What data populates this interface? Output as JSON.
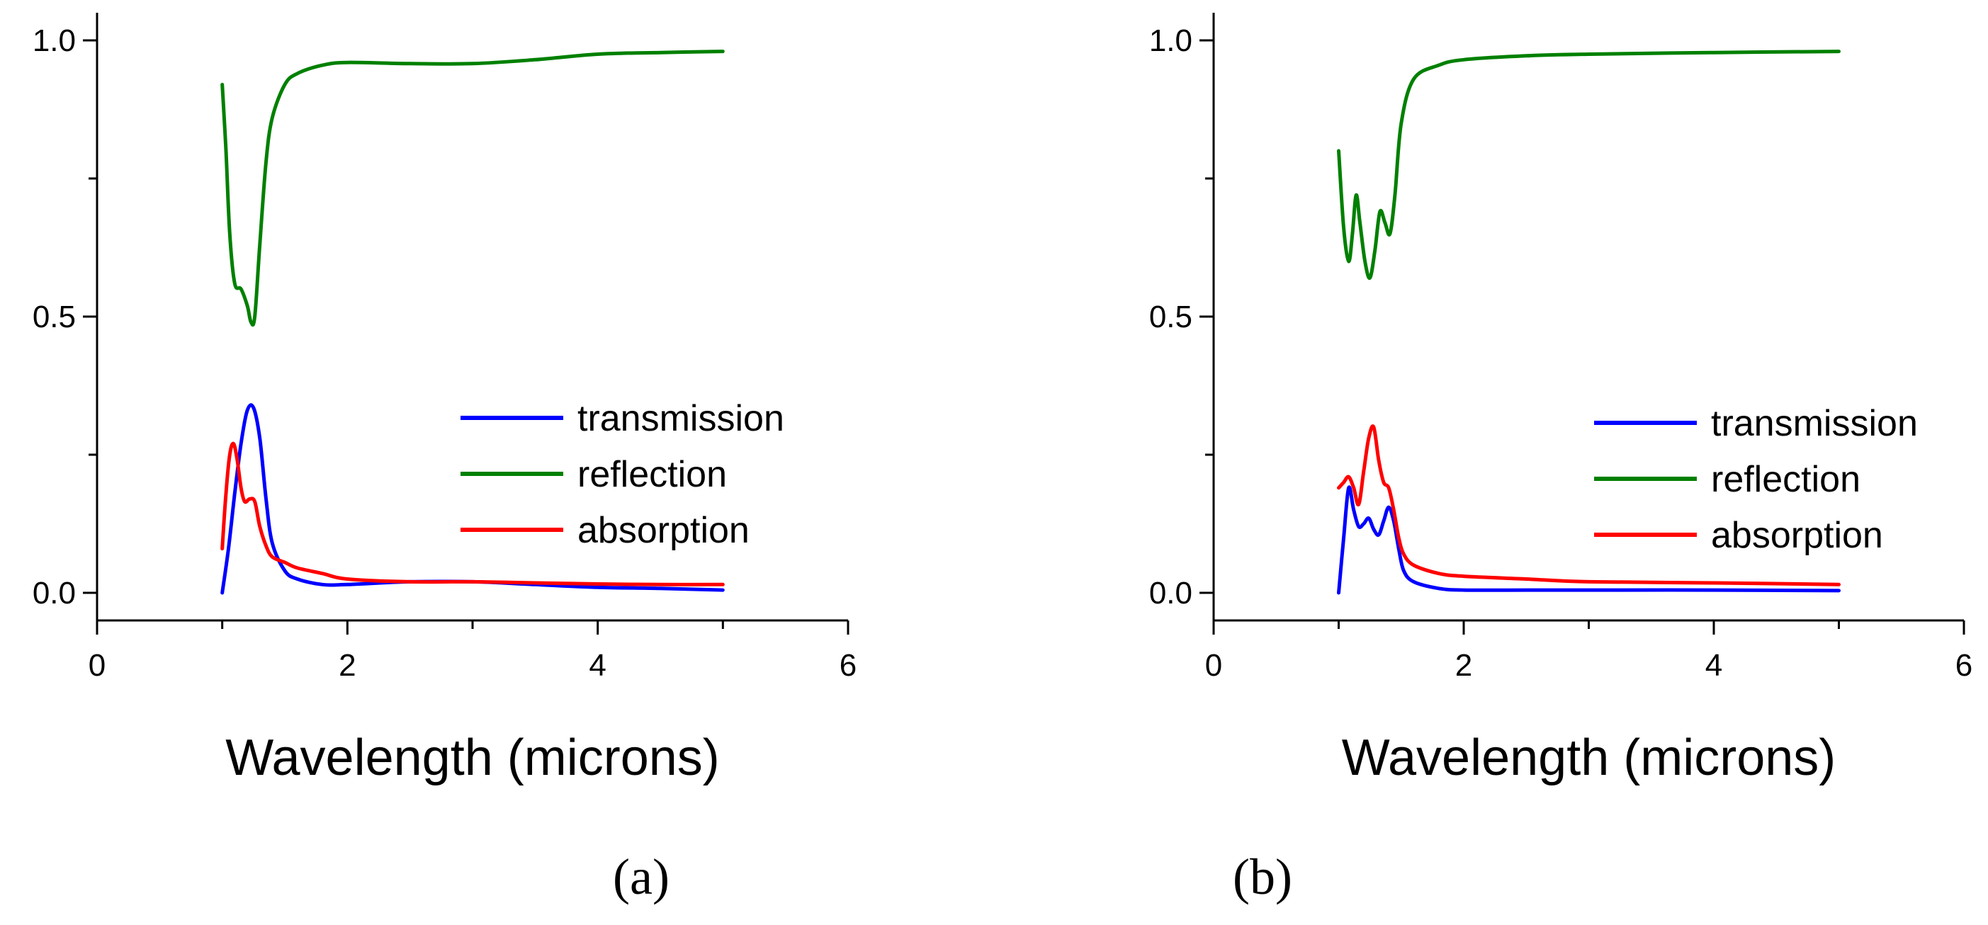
{
  "chart_data": [
    {
      "type": "line",
      "panel_label": "(a)",
      "title": "",
      "xlabel": "Wavelength (microns)",
      "ylabel": "",
      "xlim": [
        0,
        6
      ],
      "ylim": [
        -0.05,
        1.05
      ],
      "xticks": [
        0,
        2,
        4,
        6
      ],
      "xtick_labels": [
        "0",
        "2",
        "4",
        "6"
      ],
      "yticks": [
        0.0,
        0.5,
        1.0
      ],
      "ytick_labels": [
        "0.0",
        "0.5",
        "1.0"
      ],
      "grid": false,
      "legend_position": "center-right",
      "series": [
        {
          "name": "transmission",
          "color": "#0000ff",
          "x": [
            1.0,
            1.05,
            1.1,
            1.15,
            1.2,
            1.25,
            1.3,
            1.35,
            1.4,
            1.5,
            1.6,
            1.8,
            2.0,
            2.5,
            3.0,
            3.5,
            4.0,
            4.5,
            5.0
          ],
          "y": [
            0.0,
            0.08,
            0.18,
            0.27,
            0.33,
            0.335,
            0.28,
            0.17,
            0.09,
            0.04,
            0.025,
            0.015,
            0.015,
            0.02,
            0.02,
            0.015,
            0.01,
            0.008,
            0.005
          ]
        },
        {
          "name": "reflection",
          "color": "#008000",
          "x": [
            1.0,
            1.03,
            1.06,
            1.1,
            1.15,
            1.2,
            1.23,
            1.26,
            1.3,
            1.35,
            1.4,
            1.5,
            1.6,
            1.8,
            2.0,
            2.5,
            3.0,
            3.5,
            4.0,
            4.5,
            5.0
          ],
          "y": [
            0.92,
            0.8,
            0.65,
            0.56,
            0.55,
            0.52,
            0.49,
            0.5,
            0.63,
            0.78,
            0.86,
            0.92,
            0.94,
            0.955,
            0.96,
            0.958,
            0.958,
            0.965,
            0.975,
            0.978,
            0.98
          ]
        },
        {
          "name": "absorption",
          "color": "#ff0000",
          "x": [
            1.0,
            1.03,
            1.06,
            1.09,
            1.12,
            1.15,
            1.18,
            1.22,
            1.26,
            1.3,
            1.35,
            1.4,
            1.5,
            1.6,
            1.8,
            2.0,
            2.5,
            3.0,
            3.5,
            4.0,
            4.5,
            5.0
          ],
          "y": [
            0.08,
            0.18,
            0.25,
            0.27,
            0.24,
            0.19,
            0.165,
            0.17,
            0.165,
            0.12,
            0.085,
            0.065,
            0.055,
            0.045,
            0.035,
            0.025,
            0.02,
            0.02,
            0.018,
            0.016,
            0.015,
            0.015
          ]
        }
      ]
    },
    {
      "type": "line",
      "panel_label": "(b)",
      "title": "",
      "xlabel": "Wavelength (microns)",
      "ylabel": "",
      "xlim": [
        0,
        6
      ],
      "ylim": [
        -0.05,
        1.05
      ],
      "xticks": [
        0,
        2,
        4,
        6
      ],
      "xtick_labels": [
        "0",
        "2",
        "4",
        "6"
      ],
      "yticks": [
        0.0,
        0.5,
        1.0
      ],
      "ytick_labels": [
        "0.0",
        "0.5",
        "1.0"
      ],
      "grid": false,
      "legend_position": "center-right",
      "series": [
        {
          "name": "transmission",
          "color": "#0000ff",
          "x": [
            1.0,
            1.04,
            1.08,
            1.12,
            1.16,
            1.2,
            1.24,
            1.28,
            1.32,
            1.36,
            1.4,
            1.44,
            1.48,
            1.52,
            1.6,
            1.8,
            2.0,
            2.5,
            3.0,
            4.0,
            5.0
          ],
          "y": [
            0.0,
            0.1,
            0.19,
            0.15,
            0.12,
            0.125,
            0.135,
            0.115,
            0.105,
            0.13,
            0.155,
            0.13,
            0.08,
            0.04,
            0.02,
            0.008,
            0.005,
            0.005,
            0.005,
            0.005,
            0.004
          ]
        },
        {
          "name": "reflection",
          "color": "#008000",
          "x": [
            1.0,
            1.04,
            1.08,
            1.11,
            1.14,
            1.17,
            1.21,
            1.25,
            1.29,
            1.33,
            1.37,
            1.41,
            1.45,
            1.5,
            1.6,
            1.8,
            2.0,
            2.5,
            3.0,
            4.0,
            5.0
          ],
          "y": [
            0.8,
            0.66,
            0.6,
            0.65,
            0.72,
            0.67,
            0.6,
            0.57,
            0.62,
            0.69,
            0.67,
            0.65,
            0.72,
            0.85,
            0.93,
            0.955,
            0.965,
            0.972,
            0.975,
            0.978,
            0.98
          ]
        },
        {
          "name": "absorption",
          "color": "#ff0000",
          "x": [
            1.0,
            1.04,
            1.08,
            1.12,
            1.16,
            1.2,
            1.24,
            1.28,
            1.32,
            1.36,
            1.4,
            1.44,
            1.48,
            1.52,
            1.6,
            1.8,
            2.0,
            2.5,
            3.0,
            4.0,
            5.0
          ],
          "y": [
            0.19,
            0.2,
            0.21,
            0.19,
            0.16,
            0.22,
            0.28,
            0.3,
            0.24,
            0.2,
            0.19,
            0.15,
            0.1,
            0.07,
            0.05,
            0.035,
            0.03,
            0.025,
            0.02,
            0.018,
            0.015
          ]
        }
      ]
    }
  ]
}
